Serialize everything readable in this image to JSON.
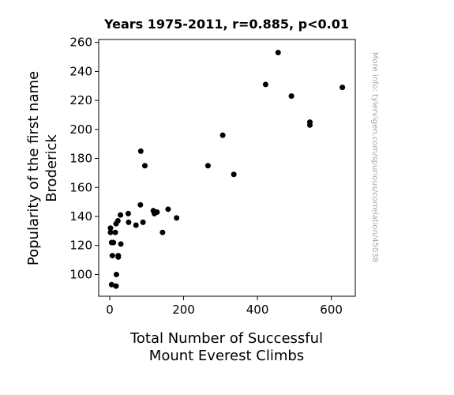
{
  "chart_data": {
    "type": "scatter",
    "title": "Years 1975-2011, r=0.885, p<0.01",
    "xlabel_lines": [
      "Total Number of Successful",
      "Mount Everest Climbs"
    ],
    "ylabel_lines": [
      "Popularity of the first name",
      "Broderick"
    ],
    "xlim": [
      -30,
      665
    ],
    "ylim": [
      85,
      262
    ],
    "xticks": [
      0,
      200,
      400,
      600
    ],
    "yticks": [
      100,
      120,
      140,
      160,
      180,
      200,
      220,
      240,
      260
    ],
    "grid": false,
    "marker_color": "#000000",
    "watermark": "More info: tylervigen.com/spurious/correlation/45038",
    "points": [
      {
        "x": 2,
        "y": 132
      },
      {
        "x": 2,
        "y": 129
      },
      {
        "x": 5,
        "y": 122
      },
      {
        "x": 7,
        "y": 113
      },
      {
        "x": 5,
        "y": 93
      },
      {
        "x": 10,
        "y": 122
      },
      {
        "x": 15,
        "y": 129
      },
      {
        "x": 17,
        "y": 135
      },
      {
        "x": 17,
        "y": 92
      },
      {
        "x": 18,
        "y": 100
      },
      {
        "x": 22,
        "y": 137
      },
      {
        "x": 23,
        "y": 113
      },
      {
        "x": 23,
        "y": 112
      },
      {
        "x": 29,
        "y": 141
      },
      {
        "x": 30,
        "y": 121
      },
      {
        "x": 50,
        "y": 142
      },
      {
        "x": 51,
        "y": 136
      },
      {
        "x": 71,
        "y": 134
      },
      {
        "x": 84,
        "y": 185
      },
      {
        "x": 83,
        "y": 148
      },
      {
        "x": 90,
        "y": 136
      },
      {
        "x": 95,
        "y": 175
      },
      {
        "x": 118,
        "y": 144
      },
      {
        "x": 121,
        "y": 142
      },
      {
        "x": 128,
        "y": 143
      },
      {
        "x": 143,
        "y": 129
      },
      {
        "x": 158,
        "y": 145
      },
      {
        "x": 181,
        "y": 139
      },
      {
        "x": 266,
        "y": 175
      },
      {
        "x": 306,
        "y": 196
      },
      {
        "x": 336,
        "y": 169
      },
      {
        "x": 422,
        "y": 231
      },
      {
        "x": 456,
        "y": 253
      },
      {
        "x": 492,
        "y": 223
      },
      {
        "x": 542,
        "y": 205
      },
      {
        "x": 542,
        "y": 203
      },
      {
        "x": 630,
        "y": 229
      }
    ]
  }
}
